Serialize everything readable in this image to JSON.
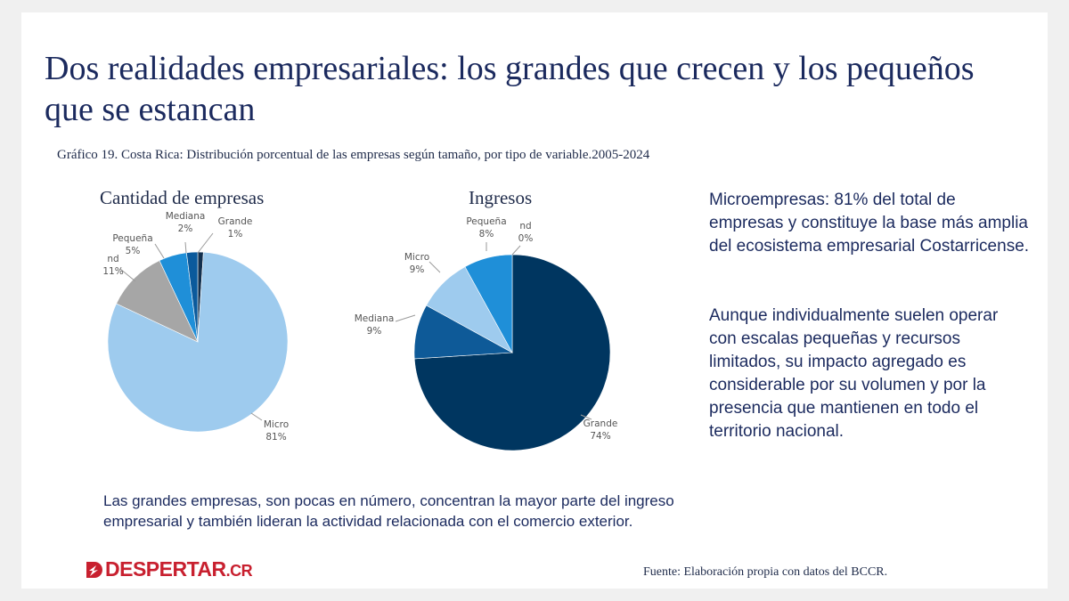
{
  "title": "Dos realidades empresariales: los grandes que crecen y los pequeños que se estancan",
  "subtitle": "Gráfico 19. Costa Rica: Distribución porcentual de las empresas según tamaño, por tipo de variable.2005-2024",
  "chart_data": [
    {
      "type": "pie",
      "title": "Cantidad de empresas",
      "slices": [
        {
          "label": "Grande",
          "value": 1,
          "display": "1%",
          "color": "#12304f"
        },
        {
          "label": "Micro",
          "value": 81,
          "display": "81%",
          "color": "#9ecbee"
        },
        {
          "label": "nd",
          "value": 11,
          "display": "11%",
          "color": "#a6a6a6"
        },
        {
          "label": "Pequeña",
          "value": 5,
          "display": "5%",
          "color": "#1f8fd8"
        },
        {
          "label": "Mediana",
          "value": 2,
          "display": "2%",
          "color": "#0b5a9c"
        }
      ]
    },
    {
      "type": "pie",
      "title": "Ingresos",
      "slices": [
        {
          "label": "nd",
          "value": 0,
          "display": "0%",
          "color": "#a6a6a6"
        },
        {
          "label": "Grande",
          "value": 74,
          "display": "74%",
          "color": "#003660"
        },
        {
          "label": "Mediana",
          "value": 9,
          "display": "9%",
          "color": "#0e5a98"
        },
        {
          "label": "Micro",
          "value": 9,
          "display": "9%",
          "color": "#9ecbee"
        },
        {
          "label": "Pequeña",
          "value": 8,
          "display": "8%",
          "color": "#1f8fd8"
        }
      ]
    }
  ],
  "side_text": [
    "Microempresas: 81% del total de empresas y constituye la base más amplia del ecosistema empresarial Costarricense.",
    "Aunque individualmente suelen operar con escalas pequeñas y recursos limitados, su impacto agregado es considerable por su volumen y por la presencia que mantienen en todo el territorio nacional."
  ],
  "bottom_text": "Las grandes empresas, son pocas en número, concentran la mayor parte del ingreso empresarial y también lideran la actividad relacionada con el comercio exterior.",
  "logo": {
    "text": "DESPERTAR",
    "suffix": ".CR",
    "icon": "despertar-d-logo-icon"
  },
  "source": "Fuente: Elaboración propia con datos del BCCR."
}
